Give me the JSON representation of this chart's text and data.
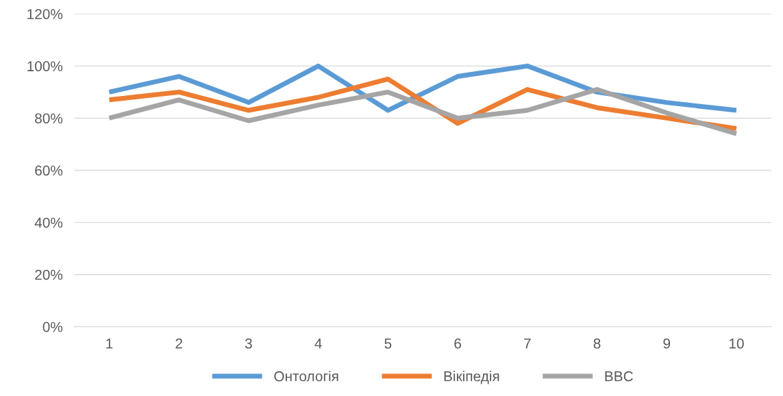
{
  "chart_data": {
    "type": "line",
    "categories": [
      "1",
      "2",
      "3",
      "4",
      "5",
      "6",
      "7",
      "8",
      "9",
      "10"
    ],
    "series": [
      {
        "name": "Онтологія",
        "color": "#5b9bd5",
        "values": [
          90,
          96,
          86,
          100,
          83,
          96,
          100,
          90,
          86,
          83
        ]
      },
      {
        "name": "Вікіпедія",
        "color": "#ed7d31",
        "values": [
          87,
          90,
          83,
          88,
          95,
          78,
          91,
          84,
          80,
          76
        ]
      },
      {
        "name": "BBC",
        "color": "#a5a5a5",
        "values": [
          80,
          87,
          79,
          85,
          90,
          80,
          83,
          91,
          82,
          74
        ]
      }
    ],
    "ylim": [
      0,
      120
    ],
    "yticks": [
      {
        "value": 0,
        "label": "0%"
      },
      {
        "value": 20,
        "label": "20%"
      },
      {
        "value": 40,
        "label": "40%"
      },
      {
        "value": 60,
        "label": "60%"
      },
      {
        "value": 80,
        "label": "80%"
      },
      {
        "value": 100,
        "label": "100%"
      },
      {
        "value": 120,
        "label": "120%"
      }
    ],
    "grid": "y",
    "legend": "bottom",
    "marker": "none",
    "line_style": "solid"
  }
}
